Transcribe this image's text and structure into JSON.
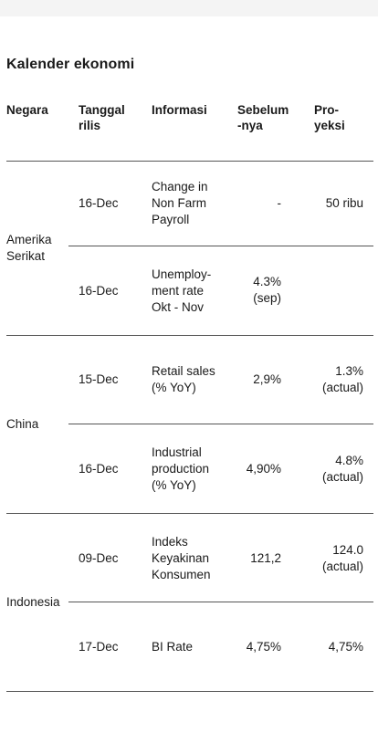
{
  "title": "Kalender ekonomi",
  "headers": {
    "country": "Negara",
    "date": "Tanggal\nrilis",
    "info": "Informasi",
    "previous": "Sebelum\n-nya",
    "projection": "Pro-\nyeksi"
  },
  "groups": [
    {
      "country": "Amerika\nSerikat",
      "rows": [
        {
          "date": "16-Dec",
          "info": "Change in\nNon Farm\nPayroll",
          "previous": "-",
          "projection": "50 ribu"
        },
        {
          "date": "16-Dec",
          "info": "Unemploy-\nment rate\nOkt - Nov",
          "previous": "4.3%\n(sep)",
          "projection": ""
        }
      ]
    },
    {
      "country": "China",
      "rows": [
        {
          "date": "15-Dec",
          "info": "Retail sales\n(% YoY)",
          "previous": "2,9%",
          "projection": "1.3%\n(actual)"
        },
        {
          "date": "16-Dec",
          "info": "Industrial\nproduction\n(% YoY)",
          "previous": "4,90%",
          "projection": "4.8%\n(actual)"
        }
      ]
    },
    {
      "country": "Indonesia",
      "rows": [
        {
          "date": "09-Dec",
          "info": "Indeks\nKeyakinan\nKonsumen",
          "previous": "121,2",
          "projection": "124.0\n(actual)"
        },
        {
          "date": "17-Dec",
          "info": "BI Rate",
          "previous": "4,75%",
          "projection": "4,75%"
        }
      ]
    }
  ]
}
